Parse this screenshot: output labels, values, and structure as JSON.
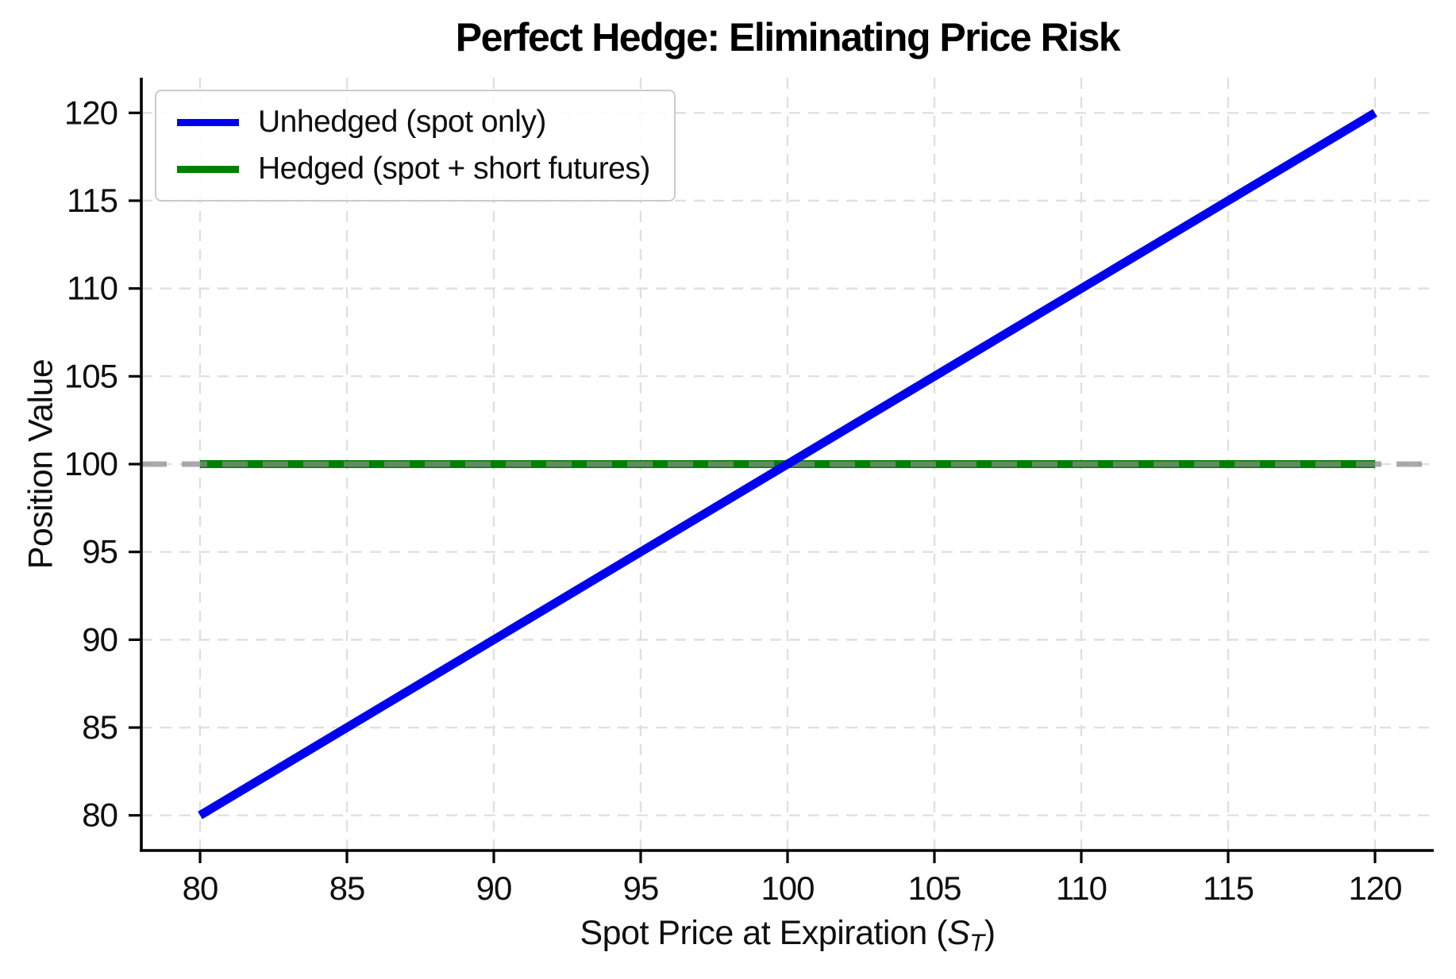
{
  "labels": {
    "title": "Perfect Hedge: Eliminating Price Risk",
    "ylabel": "Position Value",
    "xlabel_prefix": "Spot Price at Expiration (",
    "xlabel_var": "S",
    "xlabel_sub": "T",
    "xlabel_suffix": ")"
  },
  "chart_data": {
    "type": "line",
    "title": "Perfect Hedge: Eliminating Price Risk",
    "xlabel": "Spot Price at Expiration (S_T)",
    "ylabel": "Position Value",
    "xlim": [
      78,
      122
    ],
    "ylim": [
      78,
      122
    ],
    "xticks": [
      80,
      85,
      90,
      95,
      100,
      105,
      110,
      115,
      120
    ],
    "yticks": [
      80,
      85,
      90,
      95,
      100,
      105,
      110,
      115,
      120
    ],
    "grid": true,
    "grid_color": "#e0e0e0",
    "spine_color": "#000000",
    "legend_position": "upper left",
    "series": [
      {
        "name": "Unhedged (spot only)",
        "color": "#0000f0",
        "x": [
          80,
          120
        ],
        "y": [
          80,
          120
        ],
        "line_width": 11
      },
      {
        "name": "Hedged (spot + short futures)",
        "color": "#008000",
        "x": [
          80,
          120
        ],
        "y": [
          100,
          100
        ],
        "line_width": 10
      }
    ],
    "reference_line": {
      "y": 100,
      "color": "#8a8a8a",
      "opacity": 0.72,
      "style": "dashed",
      "line_width": 7,
      "spans_full_width": true
    }
  }
}
